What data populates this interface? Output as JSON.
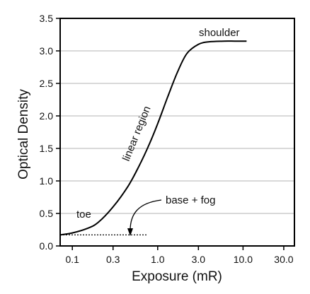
{
  "chart_data": {
    "type": "line",
    "xlabel": "Exposure (mR)",
    "ylabel": "Optical Density",
    "xscale": "log",
    "xlim": [
      0.072,
      40
    ],
    "ylim": [
      0,
      3.5
    ],
    "xticks": [
      {
        "value": 0.1,
        "label": "0.1"
      },
      {
        "value": 0.3,
        "label": "0.3"
      },
      {
        "value": 1.0,
        "label": "1.0"
      },
      {
        "value": 3.0,
        "label": "3.0"
      },
      {
        "value": 10.0,
        "label": "10.0"
      },
      {
        "value": 30.0,
        "label": "30.0"
      }
    ],
    "yticks": [
      {
        "value": 0.0,
        "label": "0.0"
      },
      {
        "value": 0.5,
        "label": "0.5"
      },
      {
        "value": 1.0,
        "label": "1.0"
      },
      {
        "value": 1.5,
        "label": "1.5"
      },
      {
        "value": 2.0,
        "label": "2.0"
      },
      {
        "value": 2.5,
        "label": "2.5"
      },
      {
        "value": 3.0,
        "label": "3.0"
      },
      {
        "value": 3.5,
        "label": "3.5"
      }
    ],
    "grid": "horizontal",
    "legend": "none",
    "series": [
      {
        "x": [
          0.072,
          0.1,
          0.15,
          0.2,
          0.3,
          0.45,
          0.6,
          0.8,
          1.0,
          1.3,
          1.7,
          2.2,
          3.0,
          4.0,
          6.0,
          8.0,
          11.0
        ],
        "y": [
          0.17,
          0.2,
          0.27,
          0.36,
          0.6,
          0.92,
          1.22,
          1.57,
          1.88,
          2.28,
          2.67,
          2.96,
          3.1,
          3.14,
          3.15,
          3.15,
          3.15
        ]
      }
    ],
    "annotations": {
      "toe": "toe",
      "linear": "linear region",
      "shoulder": "shoulder",
      "base_fog": "base + fog"
    },
    "base_fog_level": 0.17,
    "base_fog_xrange": [
      0.072,
      0.75
    ]
  }
}
